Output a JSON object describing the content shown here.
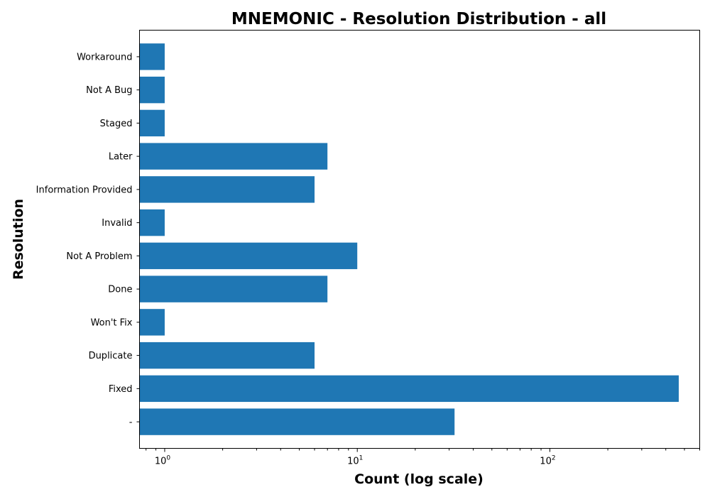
{
  "chart_data": {
    "type": "bar",
    "orientation": "horizontal",
    "title": "MNEMONIC - Resolution Distribution - all",
    "xlabel": "Count (log scale)",
    "ylabel": "Resolution",
    "xscale": "log",
    "xlim": [
      0.74,
      600
    ],
    "x_tick_values": [
      1,
      10,
      100
    ],
    "x_tick_labels": [
      {
        "base": "10",
        "exp": "0"
      },
      {
        "base": "10",
        "exp": "1"
      },
      {
        "base": "10",
        "exp": "2"
      }
    ],
    "categories": [
      "-",
      "Fixed",
      "Duplicate",
      "Won't Fix",
      "Done",
      "Not A Problem",
      "Invalid",
      "Information Provided",
      "Later",
      "Staged",
      "Not A Bug",
      "Workaround"
    ],
    "values": [
      32,
      467,
      6,
      1,
      7,
      10,
      1,
      6,
      7,
      1,
      1,
      1
    ],
    "bar_color": "#1f77b4",
    "grid": false
  }
}
